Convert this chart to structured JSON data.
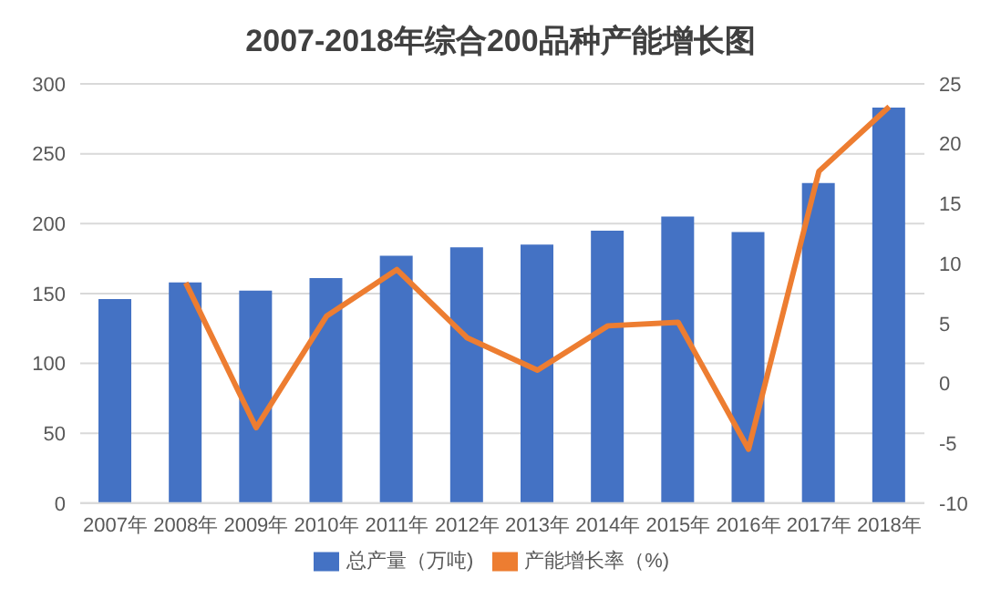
{
  "chart_data": {
    "type": "bar",
    "title": "2007-2018年综合200品种产能增长图",
    "categories": [
      "2007年",
      "2008年",
      "2009年",
      "2010年",
      "2011年",
      "2012年",
      "2013年",
      "2014年",
      "2015年",
      "2016年",
      "2017年",
      "2018年"
    ],
    "series": [
      {
        "name": "总产量（万吨)",
        "color": "#4472c4",
        "values": [
          146,
          158,
          152,
          161,
          177,
          183,
          185,
          195,
          205,
          194,
          229,
          283
        ]
      },
      {
        "name": "产能增长率（%)",
        "type": "line",
        "axis": "y2",
        "color": "#ed7d31",
        "values": [
          null,
          8.4,
          -3.7,
          5.6,
          9.5,
          3.8,
          1.1,
          4.8,
          5.1,
          -5.5,
          17.7,
          23.1
        ]
      }
    ],
    "ylim": [
      0,
      300
    ],
    "yticks": [
      0,
      50,
      100,
      150,
      200,
      250,
      300
    ],
    "y2lim": [
      -10,
      25
    ],
    "y2ticks": [
      -10,
      -5,
      0,
      5,
      10,
      15,
      20,
      25
    ],
    "grid": "y",
    "legend": "bottom",
    "marker": "none"
  }
}
